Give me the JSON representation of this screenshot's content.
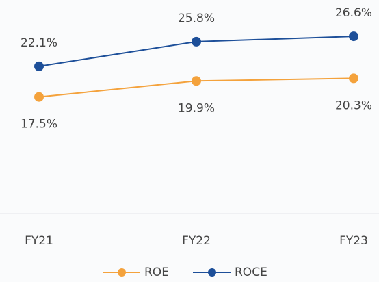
{
  "chart_data": {
    "type": "line",
    "categories": [
      "FY21",
      "FY22",
      "FY23"
    ],
    "series": [
      {
        "name": "ROE",
        "color": "#f4a23c",
        "values": [
          17.5,
          19.9,
          20.3
        ],
        "value_labels": [
          "17.5%",
          "19.9%",
          "20.3%"
        ]
      },
      {
        "name": "ROCE",
        "color": "#1d4f99",
        "values": [
          22.1,
          25.8,
          26.6
        ],
        "value_labels": [
          "22.1%",
          "25.8%",
          "26.6%"
        ]
      }
    ],
    "ylim": [
      0,
      30
    ],
    "legend": "bottom"
  }
}
